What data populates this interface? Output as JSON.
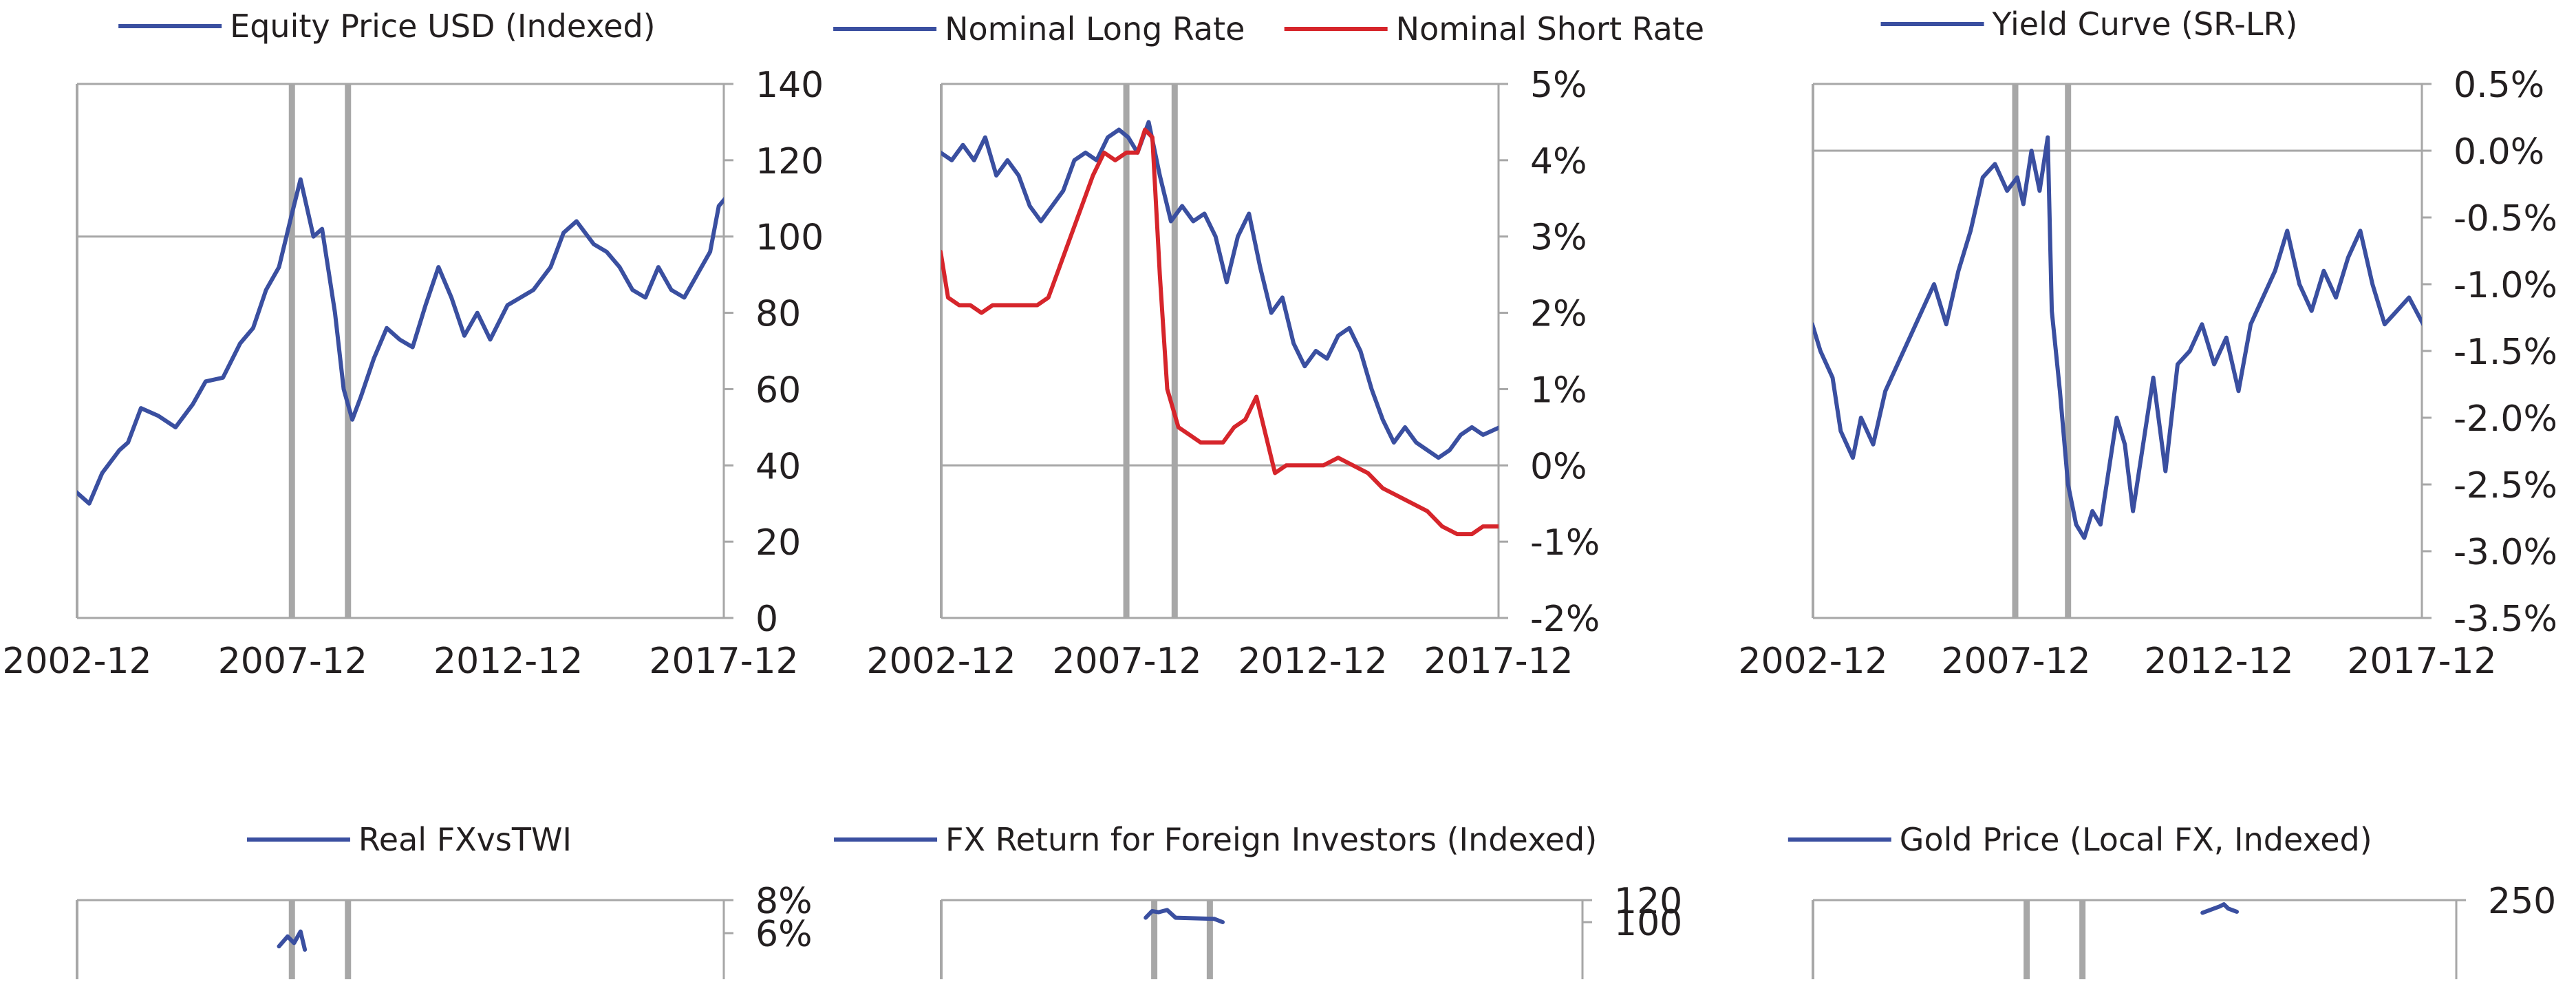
{
  "colors": {
    "blue": "#3a4fa0",
    "red": "#d6252b",
    "axis": "#a7a7a7",
    "text": "#231f20"
  },
  "chart_data": [
    {
      "type": "line",
      "legend": [
        "Equity Price USD (Indexed)"
      ],
      "x_ticks": [
        "2002-12",
        "2007-12",
        "2012-12",
        "2017-12"
      ],
      "y_ticks": [
        "0",
        "20",
        "40",
        "60",
        "80",
        "100",
        "120",
        "140"
      ],
      "ylim": [
        0,
        140
      ],
      "reference_line": 100,
      "event_bars": [
        2007.9,
        2009.2
      ],
      "series": [
        {
          "name": "Equity Price USD (Indexed)",
          "color": "#3a4fa0",
          "points": [
            [
              2002.9,
              33
            ],
            [
              2003.2,
              30
            ],
            [
              2003.5,
              38
            ],
            [
              2003.9,
              44
            ],
            [
              2004.1,
              46
            ],
            [
              2004.4,
              55
            ],
            [
              2004.8,
              53
            ],
            [
              2005.2,
              50
            ],
            [
              2005.6,
              56
            ],
            [
              2005.9,
              62
            ],
            [
              2006.3,
              63
            ],
            [
              2006.7,
              72
            ],
            [
              2007.0,
              76
            ],
            [
              2007.3,
              86
            ],
            [
              2007.6,
              92
            ],
            [
              2007.9,
              106
            ],
            [
              2008.1,
              115
            ],
            [
              2008.4,
              100
            ],
            [
              2008.6,
              102
            ],
            [
              2008.9,
              80
            ],
            [
              2009.1,
              60
            ],
            [
              2009.3,
              52
            ],
            [
              2009.5,
              58
            ],
            [
              2009.8,
              68
            ],
            [
              2010.1,
              76
            ],
            [
              2010.4,
              73
            ],
            [
              2010.7,
              71
            ],
            [
              2011.0,
              82
            ],
            [
              2011.3,
              92
            ],
            [
              2011.6,
              84
            ],
            [
              2011.9,
              74
            ],
            [
              2012.2,
              80
            ],
            [
              2012.5,
              73
            ],
            [
              2012.9,
              82
            ],
            [
              2013.2,
              84
            ],
            [
              2013.5,
              86
            ],
            [
              2013.9,
              92
            ],
            [
              2014.2,
              101
            ],
            [
              2014.5,
              104
            ],
            [
              2014.9,
              98
            ],
            [
              2015.2,
              96
            ],
            [
              2015.5,
              92
            ],
            [
              2015.8,
              86
            ],
            [
              2016.1,
              84
            ],
            [
              2016.4,
              92
            ],
            [
              2016.7,
              86
            ],
            [
              2017.0,
              84
            ],
            [
              2017.3,
              90
            ],
            [
              2017.6,
              96
            ],
            [
              2017.8,
              108
            ],
            [
              2017.95,
              110
            ]
          ]
        }
      ]
    },
    {
      "type": "line",
      "legend": [
        "Nominal Long Rate",
        "Nominal Short Rate"
      ],
      "x_ticks": [
        "2002-12",
        "2007-12",
        "2012-12",
        "2017-12"
      ],
      "y_ticks": [
        "-2%",
        "-1%",
        "0%",
        "1%",
        "2%",
        "3%",
        "4%",
        "5%"
      ],
      "ylim": [
        -2,
        5
      ],
      "reference_line": 0,
      "event_bars": [
        2007.9,
        2009.2
      ],
      "series": [
        {
          "name": "Nominal Long Rate",
          "color": "#3a4fa0",
          "points": [
            [
              2002.9,
              4.1
            ],
            [
              2003.2,
              4.0
            ],
            [
              2003.5,
              4.2
            ],
            [
              2003.8,
              4.0
            ],
            [
              2004.1,
              4.3
            ],
            [
              2004.4,
              3.8
            ],
            [
              2004.7,
              4.0
            ],
            [
              2005.0,
              3.8
            ],
            [
              2005.3,
              3.4
            ],
            [
              2005.6,
              3.2
            ],
            [
              2005.9,
              3.4
            ],
            [
              2006.2,
              3.6
            ],
            [
              2006.5,
              4.0
            ],
            [
              2006.8,
              4.1
            ],
            [
              2007.1,
              4.0
            ],
            [
              2007.4,
              4.3
            ],
            [
              2007.7,
              4.4
            ],
            [
              2007.95,
              4.3
            ],
            [
              2008.2,
              4.1
            ],
            [
              2008.5,
              4.5
            ],
            [
              2008.8,
              3.8
            ],
            [
              2009.1,
              3.2
            ],
            [
              2009.4,
              3.4
            ],
            [
              2009.7,
              3.2
            ],
            [
              2010.0,
              3.3
            ],
            [
              2010.3,
              3.0
            ],
            [
              2010.6,
              2.4
            ],
            [
              2010.9,
              3.0
            ],
            [
              2011.2,
              3.3
            ],
            [
              2011.5,
              2.6
            ],
            [
              2011.8,
              2.0
            ],
            [
              2012.1,
              2.2
            ],
            [
              2012.4,
              1.6
            ],
            [
              2012.7,
              1.3
            ],
            [
              2013.0,
              1.5
            ],
            [
              2013.3,
              1.4
            ],
            [
              2013.6,
              1.7
            ],
            [
              2013.9,
              1.8
            ],
            [
              2014.2,
              1.5
            ],
            [
              2014.5,
              1.0
            ],
            [
              2014.8,
              0.6
            ],
            [
              2015.1,
              0.3
            ],
            [
              2015.4,
              0.5
            ],
            [
              2015.7,
              0.3
            ],
            [
              2016.0,
              0.2
            ],
            [
              2016.3,
              0.1
            ],
            [
              2016.6,
              0.2
            ],
            [
              2016.9,
              0.4
            ],
            [
              2017.2,
              0.5
            ],
            [
              2017.5,
              0.4
            ],
            [
              2017.95,
              0.5
            ]
          ]
        },
        {
          "name": "Nominal Short Rate",
          "color": "#d6252b",
          "points": [
            [
              2002.9,
              2.8
            ],
            [
              2003.1,
              2.2
            ],
            [
              2003.4,
              2.1
            ],
            [
              2003.7,
              2.1
            ],
            [
              2004.0,
              2.0
            ],
            [
              2004.3,
              2.1
            ],
            [
              2004.6,
              2.1
            ],
            [
              2004.9,
              2.1
            ],
            [
              2005.2,
              2.1
            ],
            [
              2005.5,
              2.1
            ],
            [
              2005.8,
              2.2
            ],
            [
              2006.1,
              2.6
            ],
            [
              2006.4,
              3.0
            ],
            [
              2006.7,
              3.4
            ],
            [
              2007.0,
              3.8
            ],
            [
              2007.3,
              4.1
            ],
            [
              2007.6,
              4.0
            ],
            [
              2007.9,
              4.1
            ],
            [
              2008.2,
              4.1
            ],
            [
              2008.4,
              4.4
            ],
            [
              2008.6,
              4.3
            ],
            [
              2008.8,
              2.5
            ],
            [
              2009.0,
              1.0
            ],
            [
              2009.3,
              0.5
            ],
            [
              2009.6,
              0.4
            ],
            [
              2009.9,
              0.3
            ],
            [
              2010.2,
              0.3
            ],
            [
              2010.5,
              0.3
            ],
            [
              2010.8,
              0.5
            ],
            [
              2011.1,
              0.6
            ],
            [
              2011.4,
              0.9
            ],
            [
              2011.6,
              0.5
            ],
            [
              2011.9,
              -0.1
            ],
            [
              2012.2,
              0.0
            ],
            [
              2012.5,
              0.0
            ],
            [
              2012.8,
              0.0
            ],
            [
              2013.2,
              0.0
            ],
            [
              2013.6,
              0.1
            ],
            [
              2014.0,
              0.0
            ],
            [
              2014.4,
              -0.1
            ],
            [
              2014.8,
              -0.3
            ],
            [
              2015.2,
              -0.4
            ],
            [
              2015.6,
              -0.5
            ],
            [
              2016.0,
              -0.6
            ],
            [
              2016.4,
              -0.8
            ],
            [
              2016.8,
              -0.9
            ],
            [
              2017.2,
              -0.9
            ],
            [
              2017.5,
              -0.8
            ],
            [
              2017.95,
              -0.8
            ]
          ]
        }
      ]
    },
    {
      "type": "line",
      "legend": [
        "Yield Curve (SR-LR)"
      ],
      "x_ticks": [
        "2002-12",
        "2007-12",
        "2012-12",
        "2017-12"
      ],
      "y_ticks": [
        "-3.5%",
        "-3.0%",
        "-2.5%",
        "-2.0%",
        "-1.5%",
        "-1.0%",
        "-0.5%",
        "0.0%",
        "0.5%"
      ],
      "ylim": [
        -3.5,
        0.5
      ],
      "reference_line": 0,
      "event_bars": [
        2007.9,
        2009.2
      ],
      "series": [
        {
          "name": "Yield Curve (SR-LR)",
          "color": "#3a4fa0",
          "points": [
            [
              2002.9,
              -1.3
            ],
            [
              2003.1,
              -1.5
            ],
            [
              2003.4,
              -1.7
            ],
            [
              2003.6,
              -2.1
            ],
            [
              2003.9,
              -2.3
            ],
            [
              2004.1,
              -2.0
            ],
            [
              2004.4,
              -2.2
            ],
            [
              2004.7,
              -1.8
            ],
            [
              2005.0,
              -1.6
            ],
            [
              2005.3,
              -1.4
            ],
            [
              2005.6,
              -1.2
            ],
            [
              2005.9,
              -1.0
            ],
            [
              2006.2,
              -1.3
            ],
            [
              2006.5,
              -0.9
            ],
            [
              2006.8,
              -0.6
            ],
            [
              2007.1,
              -0.2
            ],
            [
              2007.4,
              -0.1
            ],
            [
              2007.7,
              -0.3
            ],
            [
              2007.95,
              -0.2
            ],
            [
              2008.1,
              -0.4
            ],
            [
              2008.3,
              0.0
            ],
            [
              2008.5,
              -0.3
            ],
            [
              2008.7,
              0.1
            ],
            [
              2008.8,
              -1.2
            ],
            [
              2009.0,
              -1.8
            ],
            [
              2009.2,
              -2.5
            ],
            [
              2009.4,
              -2.8
            ],
            [
              2009.6,
              -2.9
            ],
            [
              2009.8,
              -2.7
            ],
            [
              2010.0,
              -2.8
            ],
            [
              2010.2,
              -2.4
            ],
            [
              2010.4,
              -2.0
            ],
            [
              2010.6,
              -2.2
            ],
            [
              2010.8,
              -2.7
            ],
            [
              2011.0,
              -2.3
            ],
            [
              2011.3,
              -1.7
            ],
            [
              2011.6,
              -2.4
            ],
            [
              2011.9,
              -1.6
            ],
            [
              2012.2,
              -1.5
            ],
            [
              2012.5,
              -1.3
            ],
            [
              2012.8,
              -1.6
            ],
            [
              2013.1,
              -1.4
            ],
            [
              2013.4,
              -1.8
            ],
            [
              2013.7,
              -1.3
            ],
            [
              2014.0,
              -1.1
            ],
            [
              2014.3,
              -0.9
            ],
            [
              2014.6,
              -0.6
            ],
            [
              2014.9,
              -1.0
            ],
            [
              2015.2,
              -1.2
            ],
            [
              2015.5,
              -0.9
            ],
            [
              2015.8,
              -1.1
            ],
            [
              2016.1,
              -0.8
            ],
            [
              2016.4,
              -0.6
            ],
            [
              2016.7,
              -1.0
            ],
            [
              2017.0,
              -1.3
            ],
            [
              2017.3,
              -1.2
            ],
            [
              2017.6,
              -1.1
            ],
            [
              2017.95,
              -1.3
            ]
          ]
        }
      ]
    },
    {
      "type": "line",
      "legend": [
        "Real FXvsTWI"
      ],
      "x_ticks": [],
      "y_ticks": [
        "6%",
        "8%"
      ],
      "ylim": [
        0,
        8
      ],
      "event_bars": [
        2007.9,
        2009.2
      ],
      "series": [
        {
          "name": "Real FXvsTWI",
          "color": "#3a4fa0",
          "points": [
            [
              2007.6,
              5.2
            ],
            [
              2007.8,
              5.8
            ],
            [
              2007.95,
              5.4
            ],
            [
              2008.1,
              6.1
            ],
            [
              2008.2,
              5.0
            ]
          ]
        }
      ]
    },
    {
      "type": "line",
      "legend": [
        "FX Return for Foreign Investors (Indexed)"
      ],
      "x_ticks": [],
      "y_ticks": [
        "100",
        "120"
      ],
      "ylim": [
        0,
        120
      ],
      "event_bars": [
        2007.9,
        2009.2
      ],
      "series": [
        {
          "name": "FX Return for Foreign Investors (Indexed)",
          "color": "#3a4fa0",
          "points": [
            [
              2007.7,
              104
            ],
            [
              2007.85,
              110
            ],
            [
              2008.0,
              109
            ],
            [
              2008.2,
              111
            ],
            [
              2008.4,
              104
            ],
            [
              2009.3,
              103
            ],
            [
              2009.5,
              100
            ]
          ]
        }
      ]
    },
    {
      "type": "line",
      "legend": [
        "Gold Price (Local FX, Indexed)"
      ],
      "x_ticks": [],
      "y_ticks": [
        "250"
      ],
      "ylim": [
        0,
        250
      ],
      "event_bars": [
        2007.9,
        2009.2
      ],
      "series": [
        {
          "name": "Gold Price (Local FX, Indexed)",
          "color": "#3a4fa0",
          "points": [
            [
              2012.0,
              226
            ],
            [
              2012.2,
              232
            ],
            [
              2012.4,
              238
            ],
            [
              2012.5,
              242
            ],
            [
              2012.6,
              234
            ],
            [
              2012.8,
              228
            ]
          ]
        }
      ]
    }
  ]
}
